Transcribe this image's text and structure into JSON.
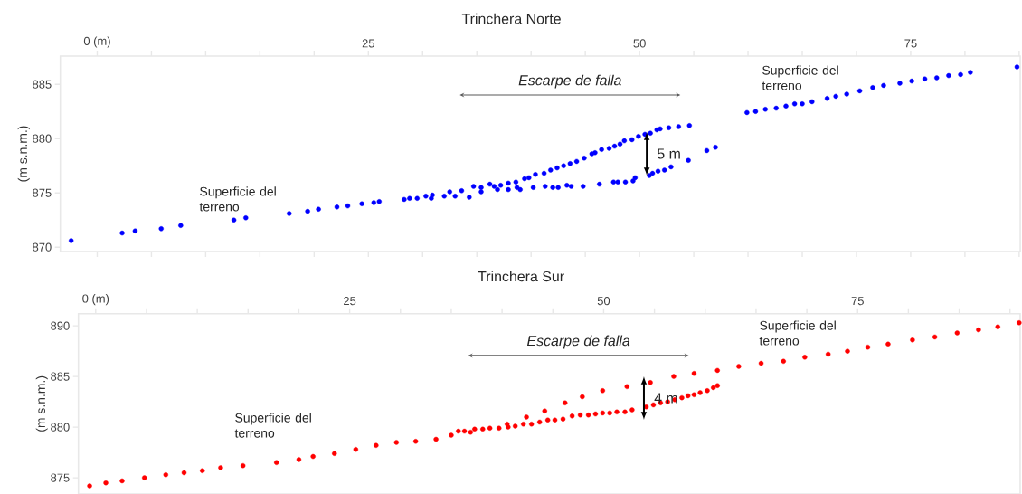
{
  "chart_data": [
    {
      "type": "scatter",
      "title": "Trinchera Norte",
      "ylabel": "(m s.n.m.)",
      "color": "#0000ff",
      "x": [
        -2.4,
        2.3,
        3.5,
        5.9,
        7.7,
        12.6,
        13.7,
        17.7,
        19.4,
        20.4,
        22.1,
        23.1,
        24.4,
        25.5,
        26.0,
        28.3,
        28.8,
        29.5,
        30.3,
        30.9,
        30.8,
        32.0,
        32.5,
        33.0,
        33.6,
        34.3,
        34.7,
        35.4,
        35.4,
        36.2,
        36.6,
        37.2,
        36.9,
        37.9,
        37.9,
        38.7,
        39.0,
        38.6,
        39.4,
        39.8,
        40.4,
        40.2,
        41.2,
        41.3,
        41.8,
        42.0,
        42.4,
        42.5,
        43.0,
        43.6,
        43.3,
        43.7,
        44.2,
        44.8,
        44.9,
        45.6,
        45.9,
        46.5,
        46.3,
        47.2,
        47.7,
        47.6,
        48.0,
        48.2,
        48.7,
        48.6,
        49.3,
        49.4,
        49.6,
        49.9,
        50.5,
        50.9,
        51.0,
        51.2,
        51.6,
        51.7,
        51.9,
        52.3,
        52.7,
        52.9,
        53.6,
        54.5,
        54.6,
        56.2,
        57.0,
        59.9,
        60.7,
        61.6,
        62.6,
        63.5,
        64.3,
        65.0,
        65.9,
        67.3,
        68.1,
        69.1,
        70.3,
        71.5,
        72.5,
        74.0,
        75.1,
        76.3,
        77.4,
        78.5,
        79.6,
        80.5,
        84.8
      ],
      "values": [
        870.6,
        871.3,
        871.5,
        871.7,
        872.0,
        872.5,
        872.7,
        873.1,
        873.3,
        873.5,
        873.7,
        873.8,
        874.0,
        874.1,
        874.2,
        874.4,
        874.5,
        874.5,
        874.7,
        874.8,
        874.5,
        874.7,
        875.1,
        874.7,
        875.2,
        874.6,
        875.6,
        875.5,
        875.1,
        875.8,
        875.6,
        875.7,
        875.3,
        875.9,
        875.3,
        875.5,
        875.3,
        876.0,
        876.3,
        876.4,
        876.7,
        875.5,
        876.8,
        875.6,
        877.1,
        875.5,
        877.3,
        875.5,
        877.5,
        877.7,
        875.7,
        875.6,
        877.9,
        875.6,
        878.2,
        878.6,
        878.7,
        879.0,
        875.8,
        879.1,
        879.3,
        876.0,
        876.0,
        879.5,
        876.0,
        879.8,
        879.9,
        876.1,
        876.4,
        880.2,
        880.4,
        876.6,
        880.5,
        876.8,
        880.8,
        877.0,
        880.9,
        877.1,
        881.0,
        877.4,
        881.1,
        878.0,
        881.2,
        878.9,
        879.2,
        882.4,
        882.5,
        882.7,
        882.8,
        883.0,
        883.2,
        883.2,
        883.4,
        883.7,
        883.9,
        884.1,
        884.4,
        884.7,
        884.9,
        885.1,
        885.3,
        885.5,
        885.6,
        885.8,
        885.9,
        886.1,
        886.6
      ],
      "xlim": [
        -3.4,
        85.1
      ],
      "ylim": [
        869.6,
        887.6
      ],
      "xticks": [
        {
          "value": 0,
          "label": "0 (m)"
        },
        {
          "value": 5,
          "label": null
        },
        {
          "value": 10,
          "label": null
        },
        {
          "value": 15,
          "label": null
        },
        {
          "value": 20,
          "label": null
        },
        25,
        {
          "value": 30,
          "label": null
        },
        {
          "value": 35,
          "label": null
        },
        {
          "value": 40,
          "label": null
        },
        {
          "value": 45,
          "label": null
        },
        50,
        {
          "value": 55,
          "label": null
        },
        {
          "value": 60,
          "label": null
        },
        {
          "value": 65,
          "label": null
        },
        {
          "value": 70,
          "label": null
        },
        75,
        {
          "value": 80,
          "label": null
        },
        {
          "value": 85,
          "label": null
        }
      ],
      "yticks": [
        870,
        875,
        880,
        885
      ],
      "annotations": [
        "Escarpe de falla",
        "5 m",
        "Superficie del terreno",
        "Superficie del terreno"
      ]
    },
    {
      "type": "scatter",
      "title": "Trinchera Sur",
      "ylabel": "(m s.n.m.)",
      "color": "#ff0000",
      "x": [
        -0.6,
        1.0,
        2.6,
        4.8,
        6.9,
        8.7,
        10.5,
        12.3,
        14.5,
        17.8,
        20.0,
        21.4,
        23.5,
        25.6,
        27.6,
        29.6,
        31.5,
        33.5,
        35.0,
        35.7,
        36.3,
        36.9,
        37.3,
        38.1,
        38.8,
        39.7,
        40.5,
        40.6,
        41.3,
        42.1,
        42.4,
        42.9,
        43.7,
        44.2,
        44.5,
        45.2,
        46.0,
        46.2,
        46.9,
        47.7,
        47.9,
        48.5,
        49.2,
        49.9,
        49.9,
        50.6,
        51.3,
        52.1,
        52.3,
        52.8,
        54.2,
        54.6,
        54.9,
        55.6,
        56.3,
        56.9,
        57.0,
        57.7,
        58.3,
        58.9,
        58.9,
        59.5,
        60.2,
        60.8,
        61.2,
        61.2,
        63.3,
        65.5,
        67.7,
        69.8,
        72.1,
        74.0,
        76.0,
        78.0,
        80.4,
        82.6,
        84.8,
        86.9,
        88.8,
        90.9
      ],
      "values": [
        874.2,
        874.5,
        874.7,
        875.0,
        875.3,
        875.5,
        875.7,
        876.0,
        876.2,
        876.5,
        876.8,
        877.1,
        877.4,
        877.8,
        878.2,
        878.5,
        878.6,
        878.8,
        879.2,
        879.6,
        879.6,
        879.5,
        879.8,
        879.8,
        879.9,
        879.9,
        880.3,
        880.0,
        880.1,
        880.3,
        881.0,
        880.3,
        880.5,
        881.6,
        880.7,
        880.7,
        880.8,
        882.4,
        881.1,
        881.2,
        883.0,
        881.2,
        881.3,
        881.4,
        883.6,
        881.4,
        881.5,
        881.5,
        884.0,
        881.7,
        882.0,
        884.4,
        882.2,
        882.4,
        882.5,
        885.0,
        882.7,
        882.9,
        883.1,
        885.3,
        883.2,
        883.4,
        883.6,
        883.9,
        884.1,
        885.6,
        886.0,
        886.3,
        886.5,
        886.9,
        887.2,
        887.5,
        887.9,
        888.2,
        888.6,
        888.9,
        889.3,
        889.6,
        889.9,
        890.3
      ],
      "xlim": [
        -1.7,
        91.0
      ],
      "ylim": [
        873.4,
        891.2
      ],
      "xticks": [
        {
          "value": 0,
          "label": "0 (m)"
        },
        {
          "value": 5,
          "label": null
        },
        {
          "value": 10,
          "label": null
        },
        {
          "value": 15,
          "label": null
        },
        {
          "value": 20,
          "label": null
        },
        25,
        {
          "value": 30,
          "label": null
        },
        {
          "value": 35,
          "label": null
        },
        {
          "value": 40,
          "label": null
        },
        {
          "value": 45,
          "label": null
        },
        50,
        {
          "value": 55,
          "label": null
        },
        {
          "value": 60,
          "label": null
        },
        {
          "value": 65,
          "label": null
        },
        {
          "value": 70,
          "label": null
        },
        75,
        {
          "value": 80,
          "label": null
        },
        {
          "value": 85,
          "label": null
        },
        {
          "value": 90,
          "label": null
        }
      ],
      "yticks": [
        875,
        880,
        885,
        890
      ],
      "annotations": [
        "Escarpe de falla",
        "4 m",
        "Superficie del terreno",
        "Superficie del terreno"
      ]
    }
  ]
}
